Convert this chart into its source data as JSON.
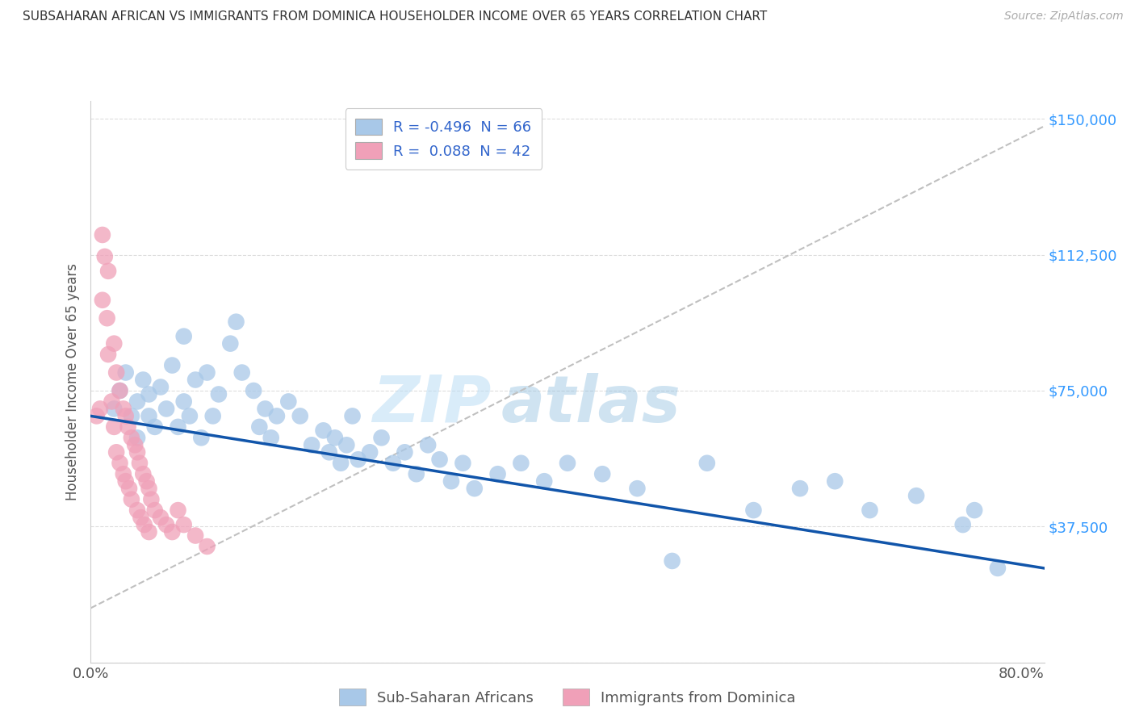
{
  "title": "SUBSAHARAN AFRICAN VS IMMIGRANTS FROM DOMINICA HOUSEHOLDER INCOME OVER 65 YEARS CORRELATION CHART",
  "source": "Source: ZipAtlas.com",
  "ylabel": "Householder Income Over 65 years",
  "legend_labels": [
    "Sub-Saharan Africans",
    "Immigrants from Dominica"
  ],
  "r_blue": -0.496,
  "n_blue": 66,
  "r_pink": 0.088,
  "n_pink": 42,
  "color_blue": "#A8C8E8",
  "color_pink": "#F0A0B8",
  "line_color_blue": "#1155AA",
  "watermark_zip": "ZIP",
  "watermark_atlas": "atlas",
  "yticks": [
    0,
    37500,
    75000,
    112500,
    150000
  ],
  "ytick_labels": [
    "",
    "$37,500",
    "$75,000",
    "$112,500",
    "$150,000"
  ],
  "xlim": [
    0.0,
    0.82
  ],
  "ylim": [
    0,
    155000
  ],
  "blue_scatter_x": [
    0.02,
    0.025,
    0.03,
    0.035,
    0.04,
    0.04,
    0.045,
    0.05,
    0.05,
    0.055,
    0.06,
    0.065,
    0.07,
    0.075,
    0.08,
    0.08,
    0.085,
    0.09,
    0.095,
    0.1,
    0.105,
    0.11,
    0.12,
    0.125,
    0.13,
    0.14,
    0.145,
    0.15,
    0.155,
    0.16,
    0.17,
    0.18,
    0.19,
    0.2,
    0.205,
    0.21,
    0.215,
    0.22,
    0.225,
    0.23,
    0.24,
    0.25,
    0.26,
    0.27,
    0.28,
    0.29,
    0.3,
    0.31,
    0.32,
    0.33,
    0.35,
    0.37,
    0.39,
    0.41,
    0.44,
    0.47,
    0.5,
    0.53,
    0.57,
    0.61,
    0.64,
    0.67,
    0.71,
    0.75,
    0.76,
    0.78
  ],
  "blue_scatter_y": [
    70000,
    75000,
    80000,
    68000,
    72000,
    62000,
    78000,
    68000,
    74000,
    65000,
    76000,
    70000,
    82000,
    65000,
    90000,
    72000,
    68000,
    78000,
    62000,
    80000,
    68000,
    74000,
    88000,
    94000,
    80000,
    75000,
    65000,
    70000,
    62000,
    68000,
    72000,
    68000,
    60000,
    64000,
    58000,
    62000,
    55000,
    60000,
    68000,
    56000,
    58000,
    62000,
    55000,
    58000,
    52000,
    60000,
    56000,
    50000,
    55000,
    48000,
    52000,
    55000,
    50000,
    55000,
    52000,
    48000,
    28000,
    55000,
    42000,
    48000,
    50000,
    42000,
    46000,
    38000,
    42000,
    26000
  ],
  "pink_scatter_x": [
    0.005,
    0.008,
    0.01,
    0.01,
    0.012,
    0.014,
    0.015,
    0.015,
    0.018,
    0.02,
    0.02,
    0.022,
    0.022,
    0.025,
    0.025,
    0.028,
    0.028,
    0.03,
    0.03,
    0.032,
    0.033,
    0.035,
    0.035,
    0.038,
    0.04,
    0.04,
    0.042,
    0.043,
    0.045,
    0.046,
    0.048,
    0.05,
    0.05,
    0.052,
    0.055,
    0.06,
    0.065,
    0.07,
    0.075,
    0.08,
    0.09,
    0.1
  ],
  "pink_scatter_y": [
    68000,
    70000,
    118000,
    100000,
    112000,
    95000,
    108000,
    85000,
    72000,
    88000,
    65000,
    80000,
    58000,
    75000,
    55000,
    70000,
    52000,
    68000,
    50000,
    65000,
    48000,
    62000,
    45000,
    60000,
    58000,
    42000,
    55000,
    40000,
    52000,
    38000,
    50000,
    48000,
    36000,
    45000,
    42000,
    40000,
    38000,
    36000,
    42000,
    38000,
    35000,
    32000
  ],
  "blue_line_x0": 0.0,
  "blue_line_x1": 0.82,
  "blue_line_y0": 68000,
  "blue_line_y1": 26000,
  "gray_line_x0": 0.0,
  "gray_line_x1": 0.82,
  "gray_line_y0": 15000,
  "gray_line_y1": 148000
}
